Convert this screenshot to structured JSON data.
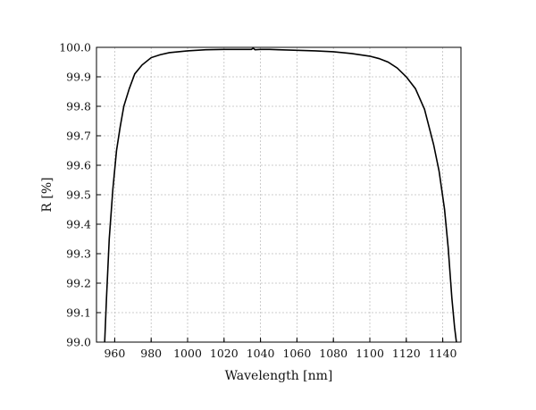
{
  "chart_data": {
    "type": "line",
    "title": "",
    "xlabel": "Wavelength [nm]",
    "ylabel": "R [%]",
    "xlim": [
      950,
      1150
    ],
    "ylim": [
      99.0,
      100.0
    ],
    "xticks": [
      960,
      980,
      1000,
      1020,
      1040,
      1060,
      1080,
      1100,
      1120,
      1140
    ],
    "yticks": [
      99.0,
      99.1,
      99.2,
      99.3,
      99.4,
      99.5,
      99.6,
      99.7,
      99.8,
      99.9,
      100.0
    ],
    "xtick_labels": [
      "960",
      "980",
      "1000",
      "1020",
      "1040",
      "1060",
      "1080",
      "1100",
      "1120",
      "1140"
    ],
    "ytick_labels": [
      "99.0",
      "99.1",
      "99.2",
      "99.3",
      "99.4",
      "99.5",
      "99.6",
      "99.7",
      "99.8",
      "99.9",
      "100.0"
    ],
    "grid": true,
    "legend": "none",
    "series": [
      {
        "color": "#000000",
        "x": [
          954.5,
          955.5,
          957,
          959,
          961,
          963,
          965,
          968,
          971,
          975,
          980,
          985,
          990,
          1000,
          1010,
          1020,
          1030,
          1035,
          1036,
          1037,
          1040,
          1045,
          1050,
          1060,
          1070,
          1080,
          1090,
          1100,
          1105,
          1110,
          1115,
          1120,
          1125,
          1130,
          1135,
          1138,
          1141,
          1143,
          1145,
          1146.5,
          1147.5
        ],
        "y": [
          99.0,
          99.15,
          99.35,
          99.52,
          99.65,
          99.73,
          99.8,
          99.86,
          99.91,
          99.94,
          99.965,
          99.975,
          99.982,
          99.988,
          99.992,
          99.993,
          99.993,
          99.993,
          99.997,
          99.992,
          99.993,
          99.993,
          99.992,
          99.99,
          99.988,
          99.985,
          99.979,
          99.97,
          99.962,
          99.95,
          99.93,
          99.9,
          99.86,
          99.79,
          99.67,
          99.58,
          99.45,
          99.32,
          99.15,
          99.05,
          99.0
        ]
      }
    ]
  }
}
